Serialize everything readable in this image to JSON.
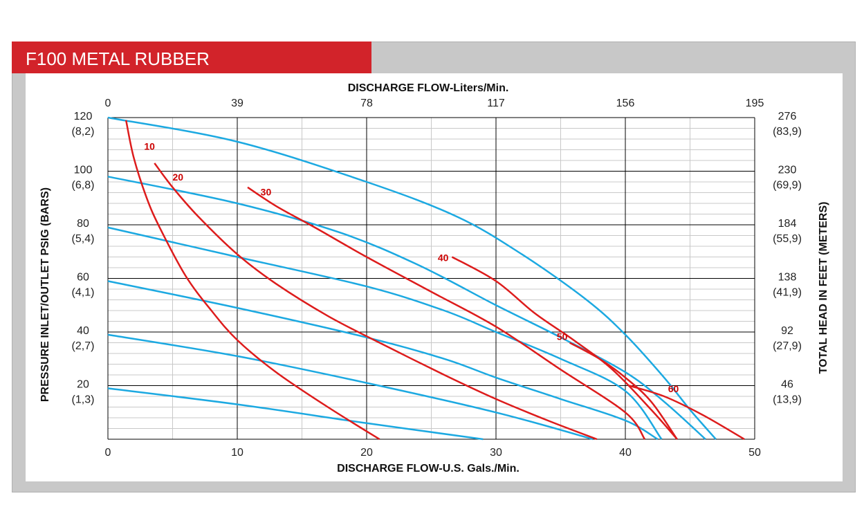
{
  "chart_data": {
    "type": "line",
    "title": "F100 METAL RUBBER",
    "xlabel": "DISCHARGE FLOW-U.S. Gals./Min.",
    "x2label": "DISCHARGE FLOW-Liters/Min.",
    "ylabel": "PRESSURE INLET/OUTLET PSIG (BARS)",
    "y2label": "TOTAL HEAD IN FEET (METERS)",
    "xlim": [
      0,
      50
    ],
    "ylim": [
      0,
      120
    ],
    "grid": true,
    "x_ticks": [
      {
        "value": 0,
        "label": "0"
      },
      {
        "value": 10,
        "label": "10"
      },
      {
        "value": 20,
        "label": "20"
      },
      {
        "value": 30,
        "label": "30"
      },
      {
        "value": 40,
        "label": "40"
      },
      {
        "value": 50,
        "label": "50"
      }
    ],
    "x2_ticks": [
      {
        "value": 0,
        "label": "0"
      },
      {
        "value": 10,
        "label": "39"
      },
      {
        "value": 20,
        "label": "78"
      },
      {
        "value": 30,
        "label": "117"
      },
      {
        "value": 40,
        "label": "156"
      },
      {
        "value": 50,
        "label": "195"
      }
    ],
    "y_ticks": [
      {
        "value": 120,
        "label": "120",
        "sub": "(8,2)"
      },
      {
        "value": 100,
        "label": "100",
        "sub": "(6,8)"
      },
      {
        "value": 80,
        "label": "80",
        "sub": "(5,4)"
      },
      {
        "value": 60,
        "label": "60",
        "sub": "(4,1)"
      },
      {
        "value": 40,
        "label": "40",
        "sub": "(2,7)"
      },
      {
        "value": 20,
        "label": "20",
        "sub": "(1,3)"
      }
    ],
    "y2_ticks": [
      {
        "value": 120,
        "label": "276",
        "sub": "(83,9)"
      },
      {
        "value": 100,
        "label": "230",
        "sub": "(69,9)"
      },
      {
        "value": 80,
        "label": "184",
        "sub": "(55,9)"
      },
      {
        "value": 60,
        "label": "138",
        "sub": "(41,9)"
      },
      {
        "value": 40,
        "label": "92",
        "sub": "(27,9)"
      },
      {
        "value": 20,
        "label": "46",
        "sub": "(13,9)"
      }
    ],
    "air_pressure_curves": [
      {
        "points": [
          [
            0,
            120
          ],
          [
            10,
            111
          ],
          [
            20,
            96
          ],
          [
            27,
            83
          ],
          [
            32,
            69
          ],
          [
            37,
            52
          ],
          [
            40,
            39
          ],
          [
            43,
            23
          ],
          [
            45,
            11
          ],
          [
            47,
            0
          ]
        ]
      },
      {
        "points": [
          [
            0,
            98
          ],
          [
            10,
            88
          ],
          [
            18,
            77
          ],
          [
            24,
            65
          ],
          [
            30,
            50
          ],
          [
            35,
            38
          ],
          [
            40,
            25
          ],
          [
            43,
            14
          ],
          [
            46.2,
            0
          ]
        ]
      },
      {
        "points": [
          [
            0,
            79
          ],
          [
            10,
            68
          ],
          [
            20,
            57
          ],
          [
            26,
            48
          ],
          [
            30,
            40
          ],
          [
            35,
            30
          ],
          [
            40,
            18
          ],
          [
            42.8,
            0
          ]
        ]
      },
      {
        "points": [
          [
            0,
            59
          ],
          [
            10,
            49
          ],
          [
            20,
            38
          ],
          [
            26,
            30
          ],
          [
            30,
            23
          ],
          [
            35,
            15
          ],
          [
            40,
            7
          ],
          [
            42.5,
            0
          ]
        ]
      },
      {
        "points": [
          [
            0,
            39
          ],
          [
            10,
            31
          ],
          [
            20,
            21
          ],
          [
            30,
            10
          ],
          [
            37.5,
            0
          ]
        ]
      },
      {
        "points": [
          [
            0,
            19
          ],
          [
            10,
            13
          ],
          [
            20,
            6
          ],
          [
            29,
            0
          ]
        ]
      }
    ],
    "flow_curves": [
      {
        "label": "10",
        "label_pos": [
          2.8,
          108
        ],
        "points": [
          [
            1.4,
            119
          ],
          [
            2,
            105
          ],
          [
            3,
            90
          ],
          [
            4,
            79
          ],
          [
            6,
            61
          ],
          [
            8,
            48
          ],
          [
            10,
            37
          ],
          [
            13,
            25
          ],
          [
            17,
            12
          ],
          [
            21,
            0
          ]
        ]
      },
      {
        "label": "20",
        "label_pos": [
          5,
          96.5
        ],
        "points": [
          [
            3.6,
            103
          ],
          [
            5,
            94
          ],
          [
            7,
            83
          ],
          [
            10,
            69
          ],
          [
            13,
            58
          ],
          [
            17,
            46
          ],
          [
            21,
            36
          ],
          [
            26,
            24
          ],
          [
            30,
            15
          ],
          [
            34,
            7
          ],
          [
            37.8,
            0
          ]
        ]
      },
      {
        "label": "30",
        "label_pos": [
          11.8,
          91
        ],
        "points": [
          [
            10.8,
            94
          ],
          [
            13,
            87
          ],
          [
            16,
            79
          ],
          [
            20,
            68
          ],
          [
            25,
            55
          ],
          [
            30,
            42
          ],
          [
            35,
            26
          ],
          [
            40,
            10
          ],
          [
            41.5,
            0
          ]
        ]
      },
      {
        "label": "40",
        "label_pos": [
          25.5,
          66.5
        ],
        "points": [
          [
            26.6,
            68
          ],
          [
            30,
            59
          ],
          [
            33,
            47
          ],
          [
            36,
            37
          ],
          [
            39,
            26
          ],
          [
            42,
            11
          ],
          [
            44,
            0
          ]
        ]
      },
      {
        "label": "50",
        "label_pos": [
          34.7,
          37
        ],
        "points": [
          [
            35.7,
            36
          ],
          [
            38,
            30
          ],
          [
            40,
            23
          ],
          [
            42,
            14
          ],
          [
            44,
            0
          ]
        ]
      },
      {
        "label": "60",
        "label_pos": [
          43.3,
          17.5
        ],
        "points": [
          [
            40.3,
            20
          ],
          [
            43,
            16
          ],
          [
            46,
            9
          ],
          [
            49.2,
            0
          ]
        ]
      }
    ],
    "colors": {
      "air_curve": "#1ca9e1",
      "flow_curve": "#dd1c1c",
      "grid": "#000000",
      "minor_grid": "#c8c8c8"
    }
  }
}
